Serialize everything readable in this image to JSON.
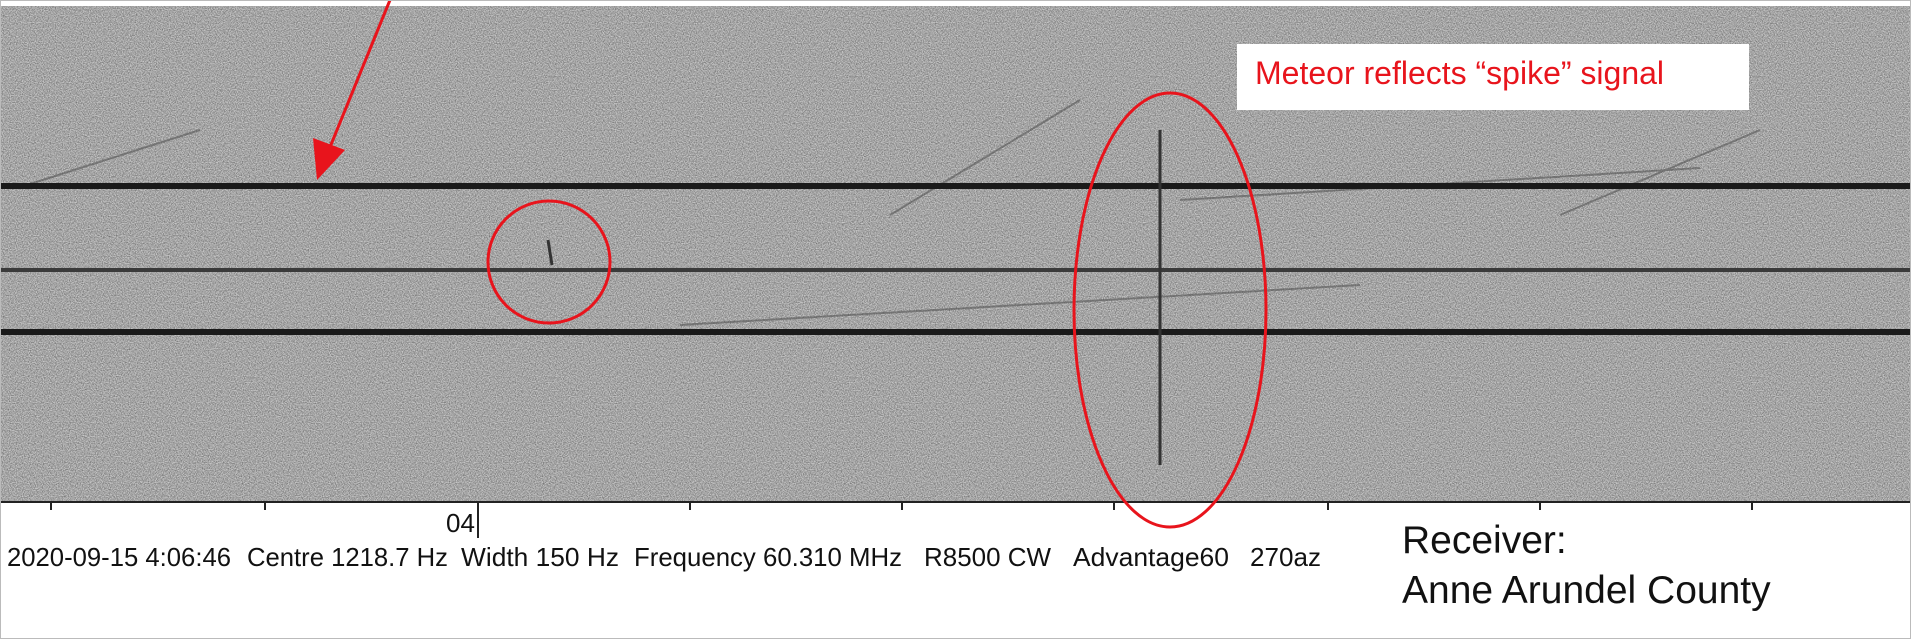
{
  "annotation": {
    "text": "Meteor reflects “spike” signal"
  },
  "spectrogram": {
    "time_label": "04",
    "status": [
      "2020-09-15 4:06:46",
      "Centre 1218.7 Hz",
      "Width 150 Hz",
      "Frequency 60.310 MHz",
      "R8500 CW",
      "Advantage60",
      "270az"
    ]
  },
  "receiver": {
    "label": "Receiver:",
    "location": "Anne Arundel County"
  }
}
